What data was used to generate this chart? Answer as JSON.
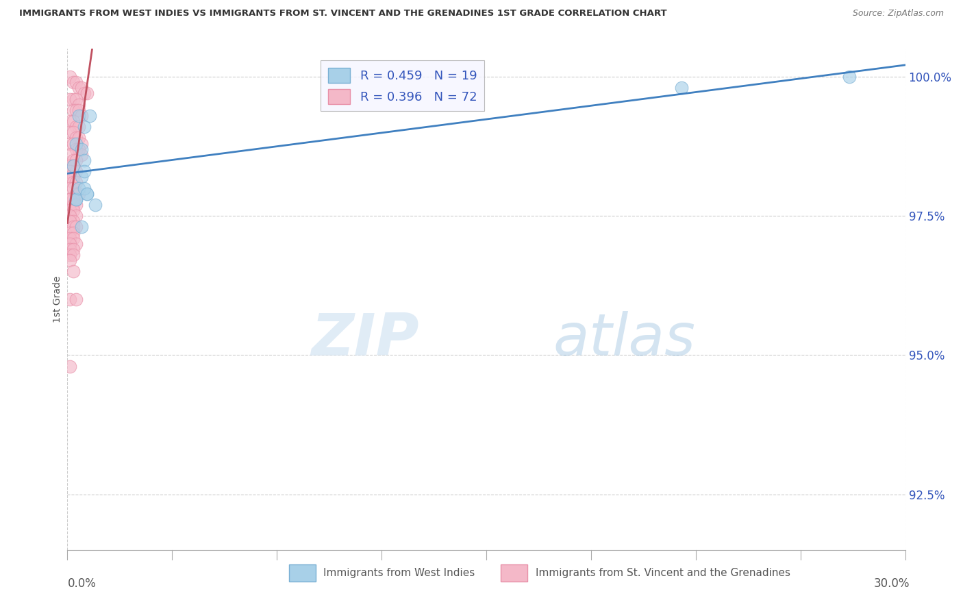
{
  "title": "IMMIGRANTS FROM WEST INDIES VS IMMIGRANTS FROM ST. VINCENT AND THE GRENADINES 1ST GRADE CORRELATION CHART",
  "source": "Source: ZipAtlas.com",
  "xlabel_blue": "Immigrants from West Indies",
  "xlabel_pink": "Immigrants from St. Vincent and the Grenadines",
  "ylabel": "1st Grade",
  "xlim": [
    0.0,
    0.3
  ],
  "ylim": [
    0.915,
    1.005
  ],
  "yticks": [
    0.925,
    0.95,
    0.975,
    1.0
  ],
  "ytick_labels": [
    "92.5%",
    "95.0%",
    "97.5%",
    "100.0%"
  ],
  "xtick_left_label": "0.0%",
  "xtick_right_label": "30.0%",
  "blue_R": 0.459,
  "blue_N": 19,
  "pink_R": 0.396,
  "pink_N": 72,
  "blue_color": "#a8d0e8",
  "pink_color": "#f4b8c8",
  "blue_edge": "#7ab0d4",
  "pink_edge": "#e890a8",
  "trend_blue": "#4080c0",
  "trend_pink": "#c05060",
  "background": "#ffffff",
  "grid_color": "#cccccc",
  "blue_scatter_x": [
    0.004,
    0.006,
    0.008,
    0.003,
    0.005,
    0.002,
    0.006,
    0.005,
    0.007,
    0.003,
    0.003,
    0.01,
    0.004,
    0.006,
    0.007,
    0.005,
    0.22,
    0.28,
    0.006
  ],
  "blue_scatter_y": [
    0.993,
    0.991,
    0.993,
    0.988,
    0.987,
    0.984,
    0.985,
    0.982,
    0.979,
    0.978,
    0.978,
    0.977,
    0.98,
    0.98,
    0.979,
    0.973,
    0.998,
    1.0,
    0.983
  ],
  "pink_scatter_x": [
    0.001,
    0.002,
    0.003,
    0.004,
    0.005,
    0.006,
    0.007,
    0.002,
    0.001,
    0.003,
    0.004,
    0.002,
    0.003,
    0.004,
    0.005,
    0.001,
    0.002,
    0.003,
    0.004,
    0.001,
    0.002,
    0.003,
    0.004,
    0.005,
    0.001,
    0.002,
    0.003,
    0.004,
    0.005,
    0.001,
    0.002,
    0.003,
    0.001,
    0.002,
    0.003,
    0.001,
    0.002,
    0.001,
    0.002,
    0.003,
    0.001,
    0.002,
    0.003,
    0.004,
    0.001,
    0.002,
    0.001,
    0.002,
    0.003,
    0.001,
    0.002,
    0.003,
    0.001,
    0.002,
    0.001,
    0.002,
    0.003,
    0.001,
    0.002,
    0.001,
    0.002,
    0.003,
    0.001,
    0.001,
    0.002,
    0.001,
    0.002,
    0.001,
    0.002,
    0.001,
    0.003,
    0.001
  ],
  "pink_scatter_y": [
    1.0,
    0.999,
    0.999,
    0.998,
    0.998,
    0.997,
    0.997,
    0.996,
    0.996,
    0.996,
    0.995,
    0.994,
    0.994,
    0.994,
    0.993,
    0.992,
    0.992,
    0.991,
    0.991,
    0.99,
    0.99,
    0.989,
    0.989,
    0.988,
    0.988,
    0.988,
    0.987,
    0.987,
    0.986,
    0.986,
    0.985,
    0.985,
    0.984,
    0.984,
    0.983,
    0.983,
    0.982,
    0.982,
    0.981,
    0.981,
    0.98,
    0.98,
    0.979,
    0.979,
    0.978,
    0.978,
    0.978,
    0.977,
    0.977,
    0.976,
    0.976,
    0.975,
    0.975,
    0.974,
    0.974,
    0.973,
    0.973,
    0.972,
    0.972,
    0.971,
    0.971,
    0.97,
    0.97,
    0.969,
    0.969,
    0.968,
    0.968,
    0.967,
    0.965,
    0.96,
    0.96,
    0.948
  ]
}
